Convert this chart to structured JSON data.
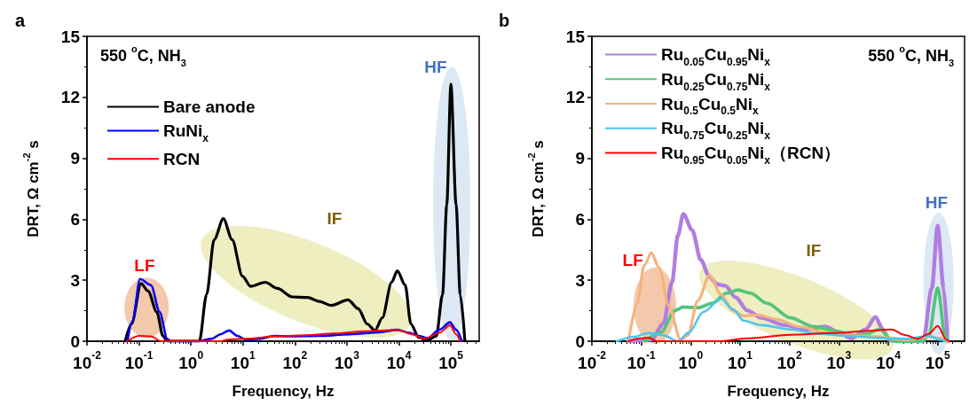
{
  "chart_data": [
    {
      "type": "line",
      "title": "a",
      "xlabel": "Frequency, Hz",
      "ylabel": "DRT, Ω cm$^{-2}$ s",
      "log": "x",
      "xlim": [
        0.01,
        350000
      ],
      "xticks": [
        {
          "value": 0.01,
          "label": "10$^{-2}$"
        },
        {
          "value": 0.1,
          "label": "10$^{-1}$"
        },
        {
          "value": 1,
          "label": "10$^{0}$"
        },
        {
          "value": 10,
          "label": "10$^{1}$"
        },
        {
          "value": 100,
          "label": "10$^{2}$"
        },
        {
          "value": 1000,
          "label": "10$^{3}$"
        },
        {
          "value": 10000,
          "label": "10$^{4}$"
        },
        {
          "value": 100000,
          "label": "10$^{5}$"
        }
      ],
      "ylim": [
        0,
        15
      ],
      "yticks": [
        0,
        3,
        6,
        9,
        12,
        15
      ],
      "grid": false,
      "legend": "top left",
      "marker": "none",
      "line_style": "solid",
      "annotations": [
        "550 $^{o}$C, NH$_{3}$",
        "LF",
        "IF",
        "HF"
      ],
      "series": [
        {
          "name": "Bare anode",
          "color": "#000000",
          "x": [
            0.055,
            0.072,
            0.11,
            0.15,
            0.22,
            0.29,
            0.35,
            1.45,
            2.0,
            2.8,
            4.2,
            6.2,
            9.8,
            14,
            27,
            46,
            89,
            175,
            295,
            500,
            1050,
            1660,
            2450,
            3470,
            4790,
            7240,
            9330,
            13200,
            17000,
            24000,
            35500,
            52500,
            69200,
            83200,
            100000,
            126000,
            151000,
            186000
          ],
          "values": [
            0.05,
            0.85,
            2.84,
            2.47,
            1.44,
            0.26,
            0,
            0,
            2.3,
            5,
            6.03,
            5,
            3.2,
            2.7,
            2.9,
            2.6,
            2.18,
            2.15,
            1.96,
            1.76,
            2.03,
            1.6,
            0.85,
            0.53,
            1.15,
            2.9,
            3.46,
            2.76,
            0.85,
            0.19,
            0.05,
            0.26,
            2.3,
            6.7,
            12.65,
            6.7,
            2.3,
            0
          ]
        },
        {
          "name": "RuNi$_{x}$",
          "color": "#0000ff",
          "x": [
            0.06,
            0.075,
            0.105,
            0.17,
            0.25,
            0.35,
            0.4,
            1.45,
            2.5,
            3.7,
            5.4,
            7.9,
            11,
            20,
            40,
            78,
            295,
            1120,
            4200,
            9330,
            16000,
            24000,
            35500,
            60000,
            96000,
            126000,
            163000
          ],
          "values": [
            0,
            1.0,
            3.06,
            2.76,
            1.44,
            0.12,
            0,
            0,
            0.12,
            0.34,
            0.53,
            0.26,
            0.09,
            0.12,
            0.26,
            0.24,
            0.26,
            0.34,
            0.44,
            0.56,
            0.41,
            0.26,
            0.15,
            0.56,
            0.93,
            0.56,
            0
          ]
        },
        {
          "name": "RCN",
          "color": "#ff0000",
          "x": [
            0.059,
            0.1,
            0.17,
            0.27,
            3.7,
            5.4,
            12,
            40,
            150,
            575,
            2200,
            9330,
            18000,
            31000,
            60000,
            96000,
            126000,
            151000
          ],
          "values": [
            0,
            0.26,
            0.24,
            0,
            0,
            0.09,
            0.12,
            0.24,
            0.29,
            0.38,
            0.49,
            0.56,
            0.34,
            0.12,
            0.41,
            0.78,
            0.34,
            0
          ]
        }
      ]
    },
    {
      "type": "line",
      "title": "b",
      "xlabel": "Frequency, Hz",
      "ylabel": "DRT, Ω cm$^{-2}$ s",
      "log": "x",
      "xlim": [
        0.01,
        350000
      ],
      "xticks": [
        {
          "value": 0.01,
          "label": "10$^{-2}$"
        },
        {
          "value": 0.1,
          "label": "10$^{-1}$"
        },
        {
          "value": 1,
          "label": "10$^{0}$"
        },
        {
          "value": 10,
          "label": "10$^{1}$"
        },
        {
          "value": 100,
          "label": "10$^{2}$"
        },
        {
          "value": 1000,
          "label": "10$^{3}$"
        },
        {
          "value": 10000,
          "label": "10$^{4}$"
        },
        {
          "value": 100000,
          "label": "10$^{5}$"
        }
      ],
      "ylim": [
        0,
        15
      ],
      "yticks": [
        0,
        3,
        6,
        9,
        12,
        15
      ],
      "grid": false,
      "legend": "top left",
      "marker": "none",
      "line_style": "solid",
      "annotations": [
        "550 $^{o}$C, NH$_{3}$",
        "LF",
        "IF",
        "HF"
      ],
      "series": [
        {
          "name": "Ru$_{0.05}$Cu$_{0.95}$Ni$_{x}$",
          "color": "#b07ee0",
          "x": [
            0.055,
            0.16,
            0.28,
            0.42,
            0.55,
            0.71,
            1.07,
            1.6,
            2.4,
            3.4,
            5.0,
            8.1,
            14,
            27,
            79,
            205,
            525,
            1020,
            1780,
            3470,
            5500,
            7760,
            10200,
            14000,
            40000,
            51300,
            75900,
            100000,
            132000,
            158000
          ],
          "values": [
            0,
            0.07,
            0.86,
            2.9,
            5.2,
            6.26,
            5.47,
            4.0,
            3.17,
            2.8,
            2.73,
            2.16,
            1.51,
            1.15,
            0.79,
            0.58,
            0.72,
            0.43,
            0.14,
            0.58,
            1.19,
            0.58,
            0.07,
            0,
            0,
            0.07,
            2.6,
            5.68,
            2.6,
            0
          ]
        },
        {
          "name": "Ru$_{0.25}$Cu$_{0.75}$Ni$_{x}$",
          "color": "#55c47c",
          "x": [
            0.12,
            0.25,
            0.48,
            0.71,
            1.4,
            2.75,
            5.4,
            9.1,
            16,
            35,
            105,
            310,
            890,
            2000,
            3470,
            6760,
            11500,
            14000,
            50000,
            66100,
            100000,
            141000,
            158000
          ],
          "values": [
            0,
            0.43,
            1.51,
            1.68,
            1.65,
            1.87,
            2.37,
            2.52,
            2.37,
            1.87,
            1.15,
            0.72,
            0.5,
            0.29,
            0.36,
            0.58,
            0.07,
            0,
            0,
            0.29,
            2.62,
            0.29,
            0
          ]
        },
        {
          "name": "Ru$_{0.5}$Cu$_{0.5}$Ni$_{x}$",
          "color": "#f5b27c",
          "x": [
            0.055,
            0.083,
            0.115,
            0.16,
            0.23,
            0.36,
            0.63,
            0.87,
            1.4,
            2.4,
            4.1,
            7.1,
            12,
            23,
            54,
            155,
            525,
            1550,
            5900,
            22900,
            66100,
            115000,
            158000
          ],
          "values": [
            0,
            1.87,
            3.74,
            4.35,
            3.6,
            1.73,
            0.07,
            0.29,
            2.0,
            3.24,
            2.3,
            1.51,
            1.25,
            1.29,
            1.08,
            0.72,
            0.43,
            0.29,
            0.22,
            0.07,
            0.22,
            0.14,
            0
          ]
        },
        {
          "name": "Ru$_{0.75}$Cu$_{0.25}$Ni$_{x}$",
          "color": "#4cc6f0",
          "x": [
            0.032,
            0.072,
            0.14,
            0.28,
            0.55,
            0.93,
            1.8,
            4.1,
            7.1,
            12,
            27,
            105,
            400,
            1550,
            5900,
            22900,
            66100,
            115000,
            141000
          ],
          "values": [
            0,
            0.22,
            0.4,
            0.29,
            0,
            0.43,
            1.44,
            2.09,
            1.58,
            1.0,
            0.79,
            0.58,
            0.36,
            0.26,
            0.17,
            0.12,
            0.26,
            0.07,
            0
          ]
        },
        {
          "name": "Ru$_{0.95}$Cu$_{0.05}$Ni$_{x}$（RCN）",
          "color": "#ff0000",
          "x": [
            0.055,
            0.095,
            0.14,
            0.21,
            3.6,
            14,
            105,
            775,
            3470,
            11500,
            22900,
            38900,
            66100,
            100000,
            151000,
            170000
          ],
          "values": [
            0,
            0.14,
            0.17,
            0,
            0,
            0.14,
            0.32,
            0.4,
            0.5,
            0.58,
            0.29,
            0.12,
            0.36,
            0.75,
            0.07,
            0
          ]
        }
      ]
    }
  ]
}
